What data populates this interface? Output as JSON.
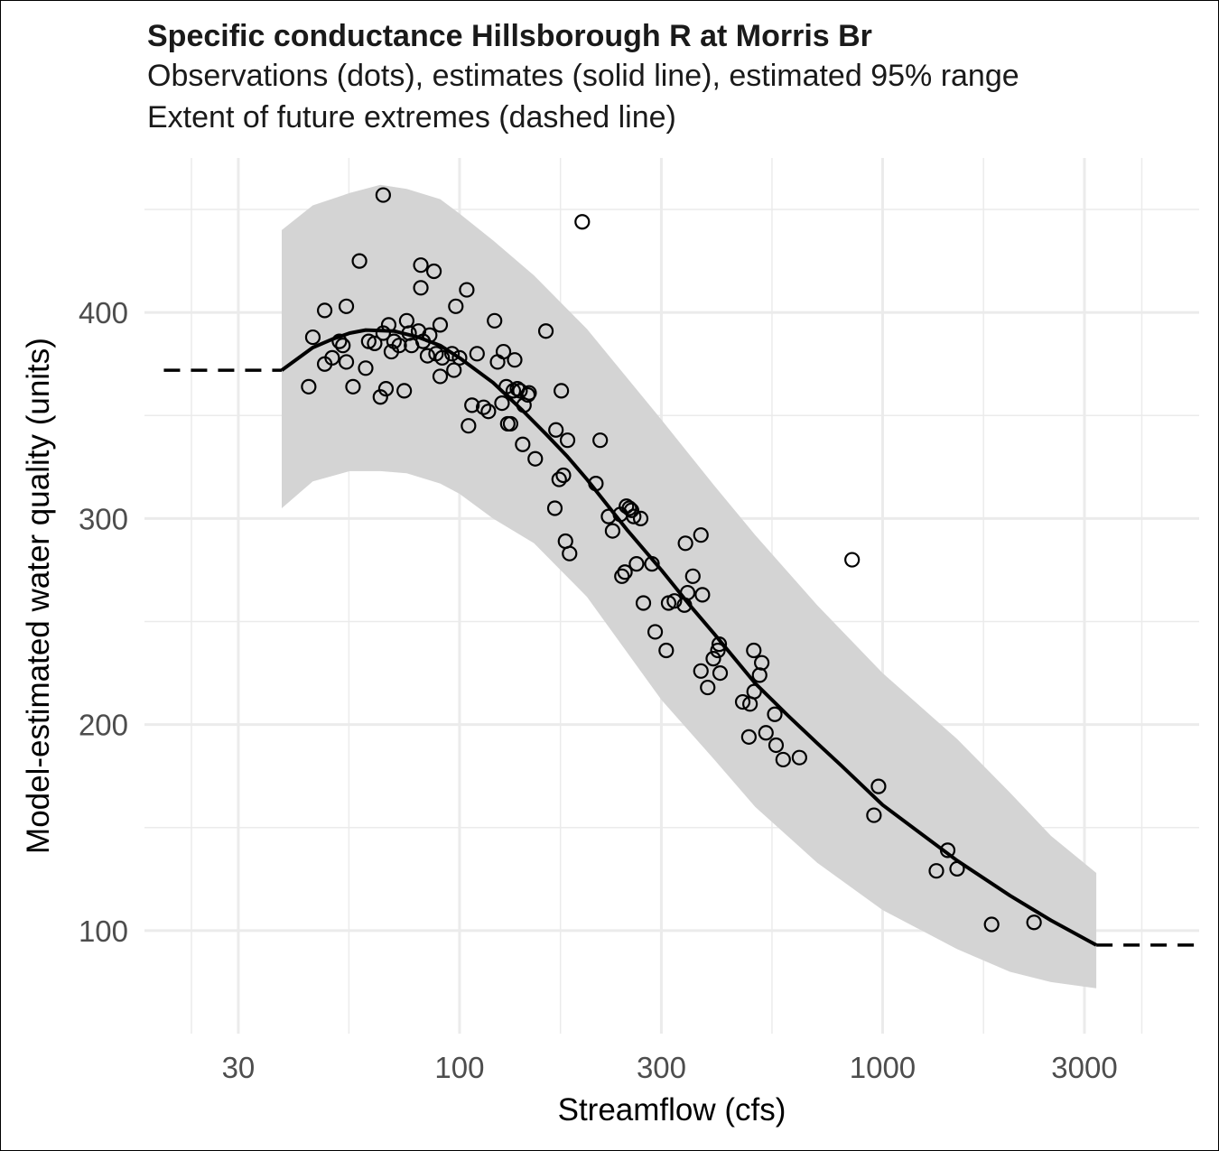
{
  "chart_data": {
    "type": "scatter",
    "title_lines": [
      "Specific conductance Hillsborough R at Morris Br",
      "Observations (dots), estimates (solid line), estimated 95% range",
      "Extent of future extremes (dashed line)"
    ],
    "xlabel": "Streamflow (cfs)",
    "ylabel": "Model-estimated water quality (units)",
    "x_scale": "log",
    "xlim": [
      18,
      5600
    ],
    "ylim": [
      50,
      475
    ],
    "x_ticks": [
      30,
      100,
      300,
      1000,
      3000
    ],
    "x_tick_labels": [
      "30",
      "100",
      "300",
      "1000",
      "3000"
    ],
    "y_ticks": [
      100,
      200,
      300,
      400
    ],
    "y_tick_labels": [
      "100",
      "200",
      "300",
      "400"
    ],
    "grid": true,
    "colors": {
      "band": "#d4d4d4",
      "line": "#000000",
      "grid": "#ebebeb",
      "points": "#000000"
    },
    "estimate_curve": [
      [
        38,
        372
      ],
      [
        45,
        383
      ],
      [
        50,
        387
      ],
      [
        55,
        390
      ],
      [
        60,
        391.5
      ],
      [
        70,
        391
      ],
      [
        80,
        388
      ],
      [
        90,
        384
      ],
      [
        100,
        378
      ],
      [
        120,
        366
      ],
      [
        140,
        353
      ],
      [
        160,
        341
      ],
      [
        180,
        330
      ],
      [
        200,
        319
      ],
      [
        250,
        294
      ],
      [
        300,
        275
      ],
      [
        350,
        258
      ],
      [
        400,
        244
      ],
      [
        500,
        220
      ],
      [
        600,
        204
      ],
      [
        700,
        191
      ],
      [
        800,
        180
      ],
      [
        1000,
        161
      ],
      [
        1500,
        134
      ],
      [
        2000,
        117
      ],
      [
        2500,
        105
      ],
      [
        3200,
        93
      ]
    ],
    "band_upper": [
      [
        38,
        440
      ],
      [
        45,
        452
      ],
      [
        55,
        458
      ],
      [
        65,
        462
      ],
      [
        75,
        460
      ],
      [
        90,
        455
      ],
      [
        100,
        448
      ],
      [
        120,
        435
      ],
      [
        150,
        418
      ],
      [
        200,
        392
      ],
      [
        300,
        348
      ],
      [
        400,
        316
      ],
      [
        500,
        292
      ],
      [
        700,
        258
      ],
      [
        1000,
        225
      ],
      [
        1500,
        193
      ],
      [
        2000,
        167
      ],
      [
        2500,
        146
      ],
      [
        3200,
        128
      ]
    ],
    "band_lower": [
      [
        38,
        305
      ],
      [
        45,
        318
      ],
      [
        55,
        323
      ],
      [
        65,
        323
      ],
      [
        75,
        322
      ],
      [
        90,
        317
      ],
      [
        100,
        312
      ],
      [
        120,
        300
      ],
      [
        150,
        288
      ],
      [
        200,
        262
      ],
      [
        300,
        212
      ],
      [
        400,
        183
      ],
      [
        500,
        160
      ],
      [
        700,
        133
      ],
      [
        1000,
        110
      ],
      [
        1500,
        91
      ],
      [
        2000,
        80
      ],
      [
        2500,
        75
      ],
      [
        3200,
        72
      ]
    ],
    "extremes_lower": {
      "x": [
        20,
        38
      ],
      "y": 372
    },
    "extremes_upper": {
      "x": [
        3200,
        5500
      ],
      "y": 93
    },
    "points": [
      [
        44,
        364
      ],
      [
        45,
        388
      ],
      [
        48,
        375
      ],
      [
        48,
        401
      ],
      [
        50,
        378
      ],
      [
        52,
        386
      ],
      [
        53,
        384
      ],
      [
        54,
        403
      ],
      [
        54,
        376
      ],
      [
        56,
        364
      ],
      [
        58,
        425
      ],
      [
        60,
        373
      ],
      [
        61,
        386
      ],
      [
        63,
        385
      ],
      [
        65,
        359
      ],
      [
        66,
        390
      ],
      [
        66,
        457
      ],
      [
        67,
        363
      ],
      [
        68,
        394
      ],
      [
        69,
        381
      ],
      [
        70,
        386
      ],
      [
        72,
        384
      ],
      [
        74,
        362
      ],
      [
        75,
        396
      ],
      [
        76,
        390
      ],
      [
        77,
        384
      ],
      [
        80,
        391
      ],
      [
        81,
        412
      ],
      [
        81,
        423
      ],
      [
        82,
        386
      ],
      [
        84,
        379
      ],
      [
        85,
        389
      ],
      [
        87,
        420
      ],
      [
        88,
        380
      ],
      [
        90,
        369
      ],
      [
        90,
        394
      ],
      [
        91,
        378
      ],
      [
        96,
        380
      ],
      [
        97,
        372
      ],
      [
        98,
        403
      ],
      [
        100,
        378
      ],
      [
        104,
        411
      ],
      [
        105,
        345
      ],
      [
        107,
        355
      ],
      [
        110,
        380
      ],
      [
        114,
        354
      ],
      [
        117,
        352
      ],
      [
        121,
        396
      ],
      [
        123,
        376
      ],
      [
        126,
        356
      ],
      [
        127,
        381
      ],
      [
        129,
        364
      ],
      [
        130,
        346
      ],
      [
        132,
        346
      ],
      [
        134,
        362
      ],
      [
        135,
        377
      ],
      [
        137,
        363
      ],
      [
        139,
        362
      ],
      [
        141,
        336
      ],
      [
        142,
        355
      ],
      [
        145,
        360
      ],
      [
        146,
        361
      ],
      [
        151,
        329
      ],
      [
        160,
        391
      ],
      [
        168,
        305
      ],
      [
        169,
        343
      ],
      [
        172,
        319
      ],
      [
        174,
        362
      ],
      [
        176,
        321
      ],
      [
        178,
        289
      ],
      [
        180,
        338
      ],
      [
        182,
        283
      ],
      [
        195,
        444
      ],
      [
        210,
        317
      ],
      [
        215,
        338
      ],
      [
        225,
        301
      ],
      [
        230,
        294
      ],
      [
        240,
        302
      ],
      [
        242,
        272
      ],
      [
        246,
        274
      ],
      [
        248,
        306
      ],
      [
        252,
        305
      ],
      [
        255,
        304
      ],
      [
        258,
        301
      ],
      [
        262,
        278
      ],
      [
        268,
        300
      ],
      [
        272,
        259
      ],
      [
        285,
        278
      ],
      [
        290,
        245
      ],
      [
        308,
        236
      ],
      [
        312,
        259
      ],
      [
        322,
        260
      ],
      [
        340,
        258
      ],
      [
        342,
        288
      ],
      [
        346,
        264
      ],
      [
        356,
        272
      ],
      [
        372,
        292
      ],
      [
        375,
        263
      ],
      [
        372,
        226
      ],
      [
        386,
        218
      ],
      [
        398,
        232
      ],
      [
        408,
        236
      ],
      [
        411,
        239
      ],
      [
        413,
        225
      ],
      [
        467,
        211
      ],
      [
        483,
        194
      ],
      [
        486,
        210
      ],
      [
        496,
        236
      ],
      [
        497,
        216
      ],
      [
        512,
        224
      ],
      [
        518,
        230
      ],
      [
        530,
        196
      ],
      [
        556,
        205
      ],
      [
        560,
        190
      ],
      [
        582,
        183
      ],
      [
        636,
        184
      ],
      [
        847,
        280
      ],
      [
        954,
        156
      ],
      [
        978,
        170
      ],
      [
        1340,
        129
      ],
      [
        1425,
        139
      ],
      [
        1500,
        130
      ],
      [
        1810,
        103
      ],
      [
        2280,
        104
      ]
    ]
  }
}
